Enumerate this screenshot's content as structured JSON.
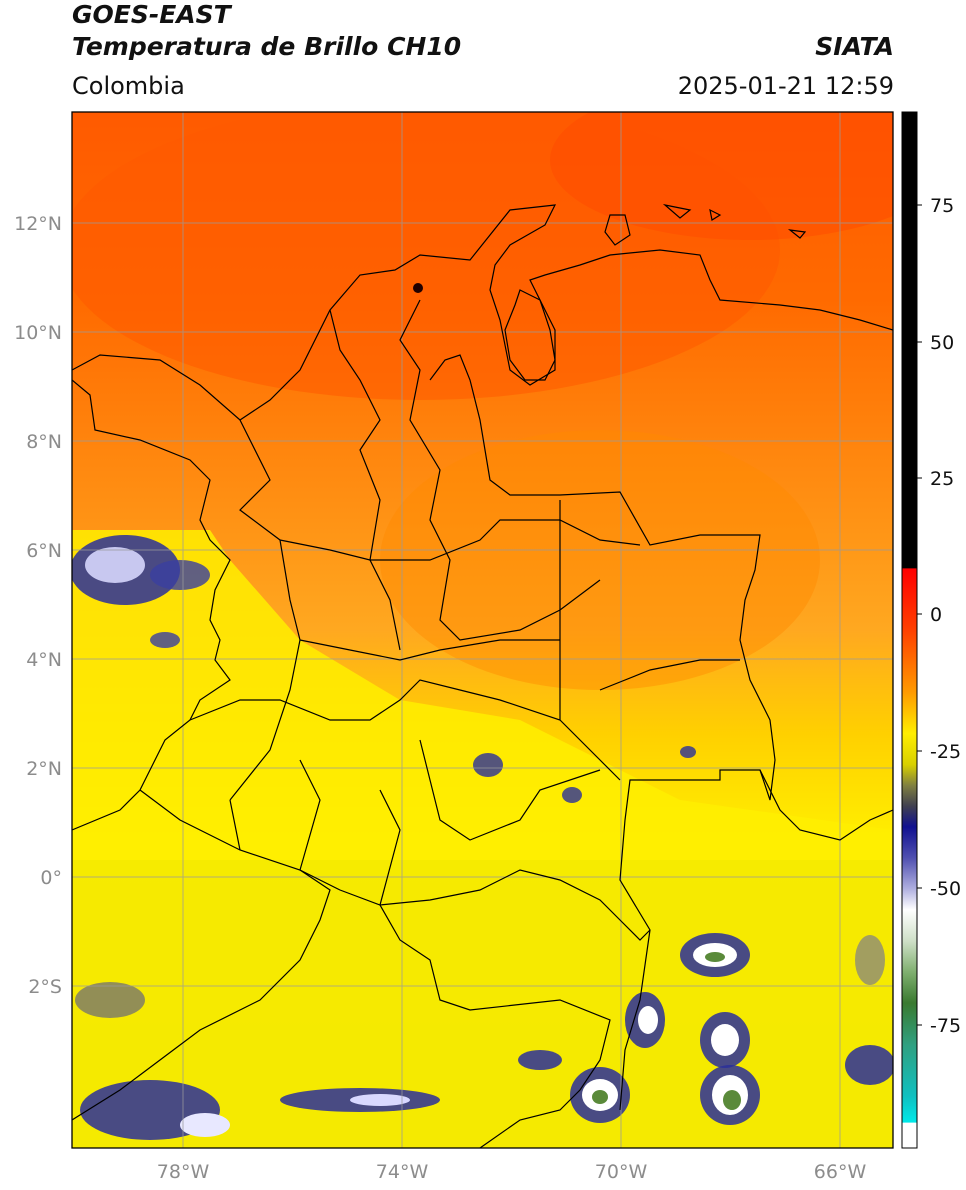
{
  "header": {
    "line1": "GOES-EAST",
    "line2": "Temperatura de Brillo CH10",
    "org": "SIATA",
    "region": "Colombia",
    "datetime": "2025-01-21 12:59"
  },
  "map": {
    "lat_labels": [
      "12°N",
      "10°N",
      "8°N",
      "6°N",
      "4°N",
      "2°N",
      "0°",
      "2°S"
    ],
    "lon_labels": [
      "78°W",
      "74°W",
      "70°W",
      "66°W"
    ],
    "colors": {
      "warm_top": "#ff6a00",
      "orange": "#ff9a10",
      "yellow": "#ffee00",
      "deep_yellow": "#e6e000",
      "cloud_blue": "#2a2f9a",
      "cloud_white": "#ffffff",
      "cloud_green": "#5a8a3a",
      "border": "#000000",
      "grid": "#9a9a9a"
    }
  },
  "colorbar": {
    "ticks": [
      "75",
      "50",
      "25",
      "0",
      "-25",
      "-50",
      "-75"
    ]
  }
}
